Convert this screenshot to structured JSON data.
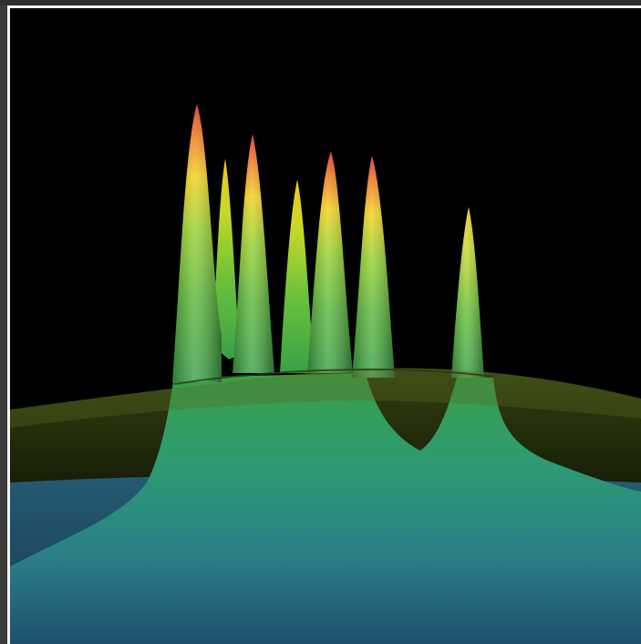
{
  "image": {
    "subject": "peaks-surface-render",
    "colors": {
      "background": "#000000",
      "frame_border": "#f2f2f2",
      "outer": "#3b3b3b",
      "peak_top": "#d4241a",
      "peak_mid": "#f2d21a",
      "peak_green": "#6ac23a",
      "base_teal": "#2a8a86",
      "floor_blue": "#1e3d5a",
      "plane_olive": "#4a5a1a"
    }
  }
}
